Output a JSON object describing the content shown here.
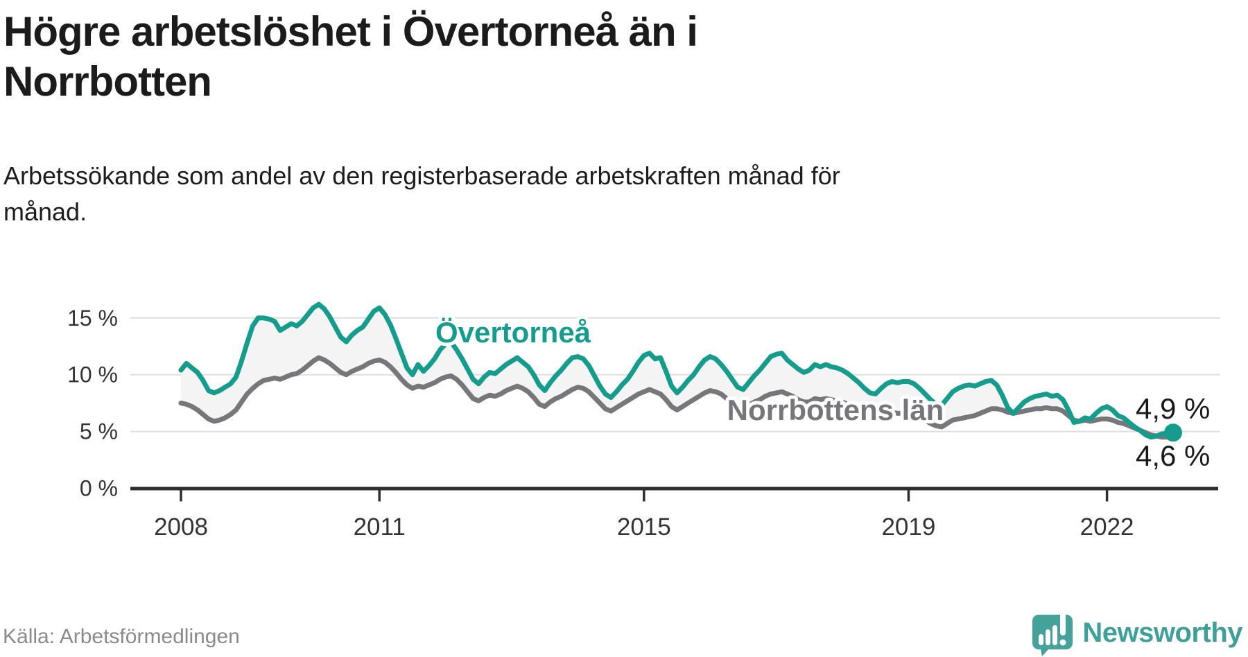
{
  "header": {
    "title_line1": "Högre arbetslöshet i Övertorneå än i",
    "title_line2": "Norrbotten",
    "subtitle_line1": "Arbetssökande som andel av den registerbaserade arbetskraften månad för",
    "subtitle_line2": "månad."
  },
  "chart_data": {
    "type": "line",
    "frequency": "monthly",
    "x_range": [
      "2008-01",
      "2023-01"
    ],
    "x_ticks": [
      "2008",
      "2011",
      "2015",
      "2019",
      "2022"
    ],
    "y_ticks": [
      {
        "value": 15,
        "label": "15 %"
      },
      {
        "value": 10,
        "label": "10 %"
      },
      {
        "value": 5,
        "label": "5 %"
      },
      {
        "value": 0,
        "label": "0 %"
      }
    ],
    "ylim": [
      0,
      17.6
    ],
    "grid": "horizontal",
    "legend_position": "inline-labels",
    "colors": {
      "overtornea": "#159c8d",
      "norrbotten": "#77777b",
      "area_fill": "#f4f4f4",
      "grid": "#dedede",
      "axis": "#2e2e2e",
      "tick_label": "#333333",
      "annotation": "#1a1a1a"
    },
    "series": [
      {
        "name": "Övertorneå",
        "color_key": "overtornea",
        "end_label": "4,9 %",
        "end_value": 4.9,
        "values": [
          10.4,
          11.0,
          10.6,
          10.2,
          9.5,
          8.6,
          8.4,
          8.6,
          8.9,
          9.2,
          9.8,
          11.2,
          12.8,
          14.3,
          15.0,
          15.0,
          14.9,
          14.7,
          13.9,
          14.2,
          14.5,
          14.3,
          14.7,
          15.3,
          15.9,
          16.2,
          15.8,
          15.1,
          14.2,
          13.3,
          12.9,
          13.5,
          13.9,
          14.2,
          14.9,
          15.6,
          15.9,
          15.3,
          14.4,
          13.2,
          11.9,
          10.6,
          10.0,
          10.9,
          10.3,
          10.8,
          11.4,
          12.2,
          12.7,
          12.9,
          12.2,
          11.4,
          10.5,
          9.6,
          9.2,
          9.8,
          10.2,
          10.1,
          10.5,
          10.9,
          11.2,
          11.5,
          11.1,
          10.7,
          10.0,
          9.1,
          8.6,
          9.3,
          9.9,
          10.4,
          11.0,
          11.5,
          11.6,
          11.4,
          10.8,
          9.9,
          9.0,
          8.3,
          8.0,
          8.5,
          9.1,
          9.6,
          10.3,
          11.1,
          11.7,
          11.9,
          11.4,
          11.5,
          10.3,
          9.0,
          8.4,
          8.9,
          9.5,
          10.0,
          10.7,
          11.3,
          11.6,
          11.4,
          10.9,
          10.3,
          9.6,
          8.9,
          8.7,
          9.3,
          9.9,
          10.4,
          11.0,
          11.6,
          11.8,
          11.9,
          11.3,
          10.9,
          10.5,
          10.2,
          10.4,
          10.9,
          10.7,
          10.9,
          10.7,
          10.6,
          10.4,
          10.1,
          9.7,
          9.3,
          8.8,
          8.4,
          8.3,
          8.8,
          9.2,
          9.4,
          9.3,
          9.4,
          9.4,
          9.2,
          8.8,
          8.3,
          7.8,
          7.4,
          7.3,
          7.9,
          8.5,
          8.8,
          9.0,
          9.1,
          9.0,
          9.2,
          9.4,
          9.5,
          9.1,
          8.2,
          7.1,
          6.6,
          7.1,
          7.6,
          7.9,
          8.1,
          8.2,
          8.3,
          8.1,
          8.2,
          7.8,
          6.9,
          5.8,
          5.9,
          6.2,
          6.1,
          6.6,
          7.0,
          7.2,
          6.9,
          6.4,
          6.2,
          5.8,
          5.4,
          5.1,
          4.7,
          4.5,
          4.6,
          4.8,
          4.8,
          4.9
        ]
      },
      {
        "name": "Norrbottens län",
        "color_key": "norrbotten",
        "end_label": "4,6 %",
        "end_value": 4.6,
        "values": [
          7.5,
          7.4,
          7.2,
          6.9,
          6.5,
          6.1,
          5.9,
          6.0,
          6.2,
          6.5,
          6.9,
          7.6,
          8.3,
          8.8,
          9.2,
          9.5,
          9.6,
          9.7,
          9.6,
          9.8,
          10.0,
          10.1,
          10.4,
          10.8,
          11.2,
          11.5,
          11.3,
          11.0,
          10.6,
          10.2,
          10.0,
          10.3,
          10.5,
          10.7,
          11.0,
          11.2,
          11.3,
          11.1,
          10.7,
          10.2,
          9.6,
          9.1,
          8.8,
          9.0,
          8.9,
          9.1,
          9.3,
          9.6,
          9.8,
          9.9,
          9.6,
          9.1,
          8.5,
          7.9,
          7.7,
          8.0,
          8.2,
          8.1,
          8.3,
          8.6,
          8.8,
          9.0,
          8.8,
          8.5,
          8.0,
          7.4,
          7.2,
          7.6,
          7.9,
          8.1,
          8.4,
          8.7,
          8.9,
          8.8,
          8.5,
          8.0,
          7.5,
          7.0,
          6.8,
          7.1,
          7.4,
          7.7,
          8.0,
          8.3,
          8.5,
          8.7,
          8.5,
          8.3,
          7.8,
          7.2,
          6.9,
          7.2,
          7.5,
          7.8,
          8.1,
          8.4,
          8.6,
          8.5,
          8.3,
          7.9,
          7.5,
          7.1,
          7.0,
          7.3,
          7.6,
          7.8,
          8.1,
          8.3,
          8.4,
          8.5,
          8.3,
          8.1,
          7.8,
          7.6,
          7.6,
          7.9,
          7.8,
          7.9,
          7.8,
          7.7,
          7.6,
          7.4,
          7.2,
          6.9,
          6.6,
          6.3,
          6.2,
          6.4,
          6.6,
          6.7,
          6.6,
          6.6,
          6.6,
          6.5,
          6.3,
          6.0,
          5.7,
          5.5,
          5.4,
          5.7,
          6.0,
          6.1,
          6.2,
          6.3,
          6.4,
          6.6,
          6.8,
          7.0,
          7.0,
          6.9,
          6.7,
          6.6,
          6.7,
          6.8,
          6.9,
          7.0,
          7.0,
          7.1,
          7.0,
          7.0,
          6.8,
          6.4,
          6.0,
          5.9,
          6.0,
          5.9,
          6.0,
          6.1,
          6.1,
          6.0,
          5.8,
          5.7,
          5.5,
          5.3,
          5.1,
          4.9,
          4.7,
          4.6,
          4.5,
          4.5,
          4.6
        ]
      }
    ]
  },
  "footer": {
    "source": "Källa: Arbetsförmedlingen"
  },
  "branding": {
    "name": "Newsworthy",
    "logo_color": "#45a29a",
    "logo_shadow_color": "#2e837c",
    "text_color": "#40a099"
  }
}
